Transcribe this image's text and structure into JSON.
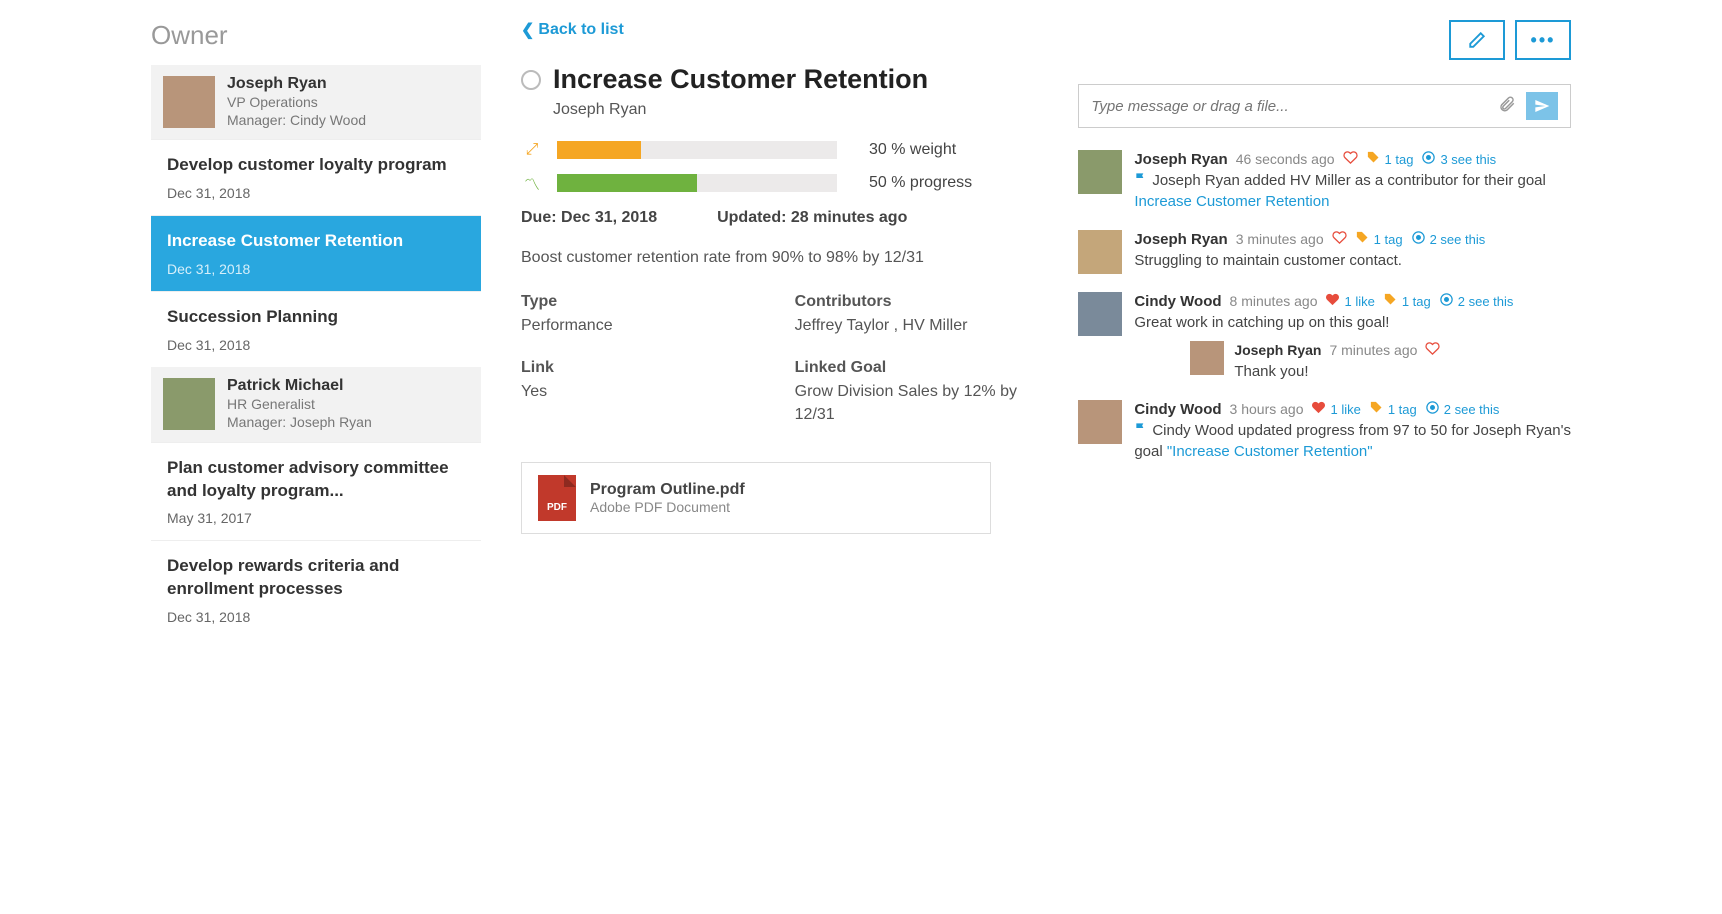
{
  "colors": {
    "accent": "#1d9ad6",
    "selected_bg": "#29a7df",
    "weight_bar": "#f5a623",
    "progress_bar": "#6fb23f",
    "bar_track": "#eceaea",
    "heart": "#e74c3c",
    "tag": "#f5a623",
    "pdf": "#c1392b"
  },
  "sidebar": {
    "title": "Owner",
    "owners": [
      {
        "name": "Joseph Ryan",
        "role": "VP Operations",
        "manager": "Manager: Cindy Wood",
        "goals": [
          {
            "title": "Develop customer loyalty program",
            "date": "Dec 31, 2018",
            "selected": false
          },
          {
            "title": "Increase Customer Retention",
            "date": "Dec 31, 2018",
            "selected": true
          },
          {
            "title": "Succession Planning",
            "date": "Dec 31, 2018",
            "selected": false
          }
        ]
      },
      {
        "name": "Patrick Michael",
        "role": "HR Generalist",
        "manager": "Manager: Joseph Ryan",
        "goals": [
          {
            "title": "Plan customer advisory committee and loyalty program...",
            "date": "May 31, 2017",
            "selected": false
          },
          {
            "title": "Develop rewards criteria and enrollment processes",
            "date": "Dec 31, 2018",
            "selected": false
          }
        ]
      }
    ]
  },
  "back_label": "Back to list",
  "detail": {
    "title": "Increase Customer Retention",
    "owner": "Joseph Ryan",
    "weight": {
      "percent": 30,
      "label": "30 % weight",
      "bar_color": "#f5a623"
    },
    "progress": {
      "percent": 50,
      "label": "50 % progress",
      "bar_color": "#6fb23f"
    },
    "due_label": "Due:",
    "due_value": "Dec 31, 2018",
    "updated_label": "Updated:",
    "updated_value": "28 minutes ago",
    "description": "Boost customer retention rate from 90% to 98% by 12/31",
    "fields": {
      "type_label": "Type",
      "type_value": "Performance",
      "contrib_label": "Contributors",
      "contrib_value": "Jeffrey Taylor , HV Miller",
      "link_label": "Link",
      "link_value": "Yes",
      "linked_goal_label": "Linked Goal",
      "linked_goal_value": "Grow Division Sales by 12% by 12/31"
    },
    "attachment": {
      "name": "Program Outline.pdf",
      "type": "Adobe PDF Document",
      "badge": "PDF"
    }
  },
  "compose": {
    "placeholder": "Type message or drag a file..."
  },
  "feed": [
    {
      "author": "Joseph Ryan",
      "time": "46 seconds ago",
      "heart_filled": false,
      "likes": "",
      "tags": "1 tag",
      "views": "3 see this",
      "kind": "system",
      "prefix": "Joseph Ryan added HV Miller as a contributor for their goal ",
      "link_text": "Increase Customer Retention",
      "suffix": ""
    },
    {
      "author": "Joseph Ryan",
      "time": "3 minutes ago",
      "heart_filled": false,
      "likes": "",
      "tags": "1 tag",
      "views": "2 see this",
      "kind": "message",
      "text": "Struggling to maintain customer contact."
    },
    {
      "author": "Cindy Wood",
      "time": "8 minutes ago",
      "heart_filled": true,
      "likes": "1 like",
      "tags": "1 tag",
      "views": "2 see this",
      "kind": "message",
      "text": "Great work in catching up on this goal!",
      "reply": {
        "author": "Joseph Ryan",
        "time": "7 minutes ago",
        "text": "Thank you!"
      }
    },
    {
      "author": "Cindy Wood",
      "time": "3 hours ago",
      "heart_filled": true,
      "likes": "1 like",
      "tags": "1 tag",
      "views": "2 see this",
      "kind": "system",
      "prefix": "Cindy Wood updated progress from 97 to 50 for Joseph Ryan's goal ",
      "link_text": "\"Increase Customer Retention\"",
      "suffix": ""
    }
  ]
}
